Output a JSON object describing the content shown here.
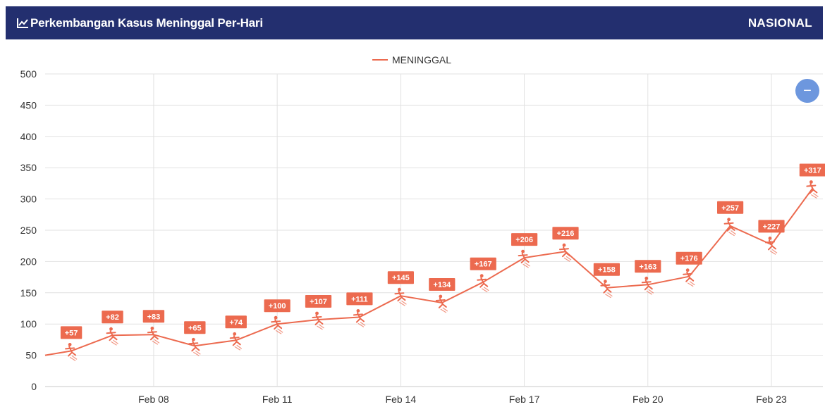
{
  "header": {
    "title": "Perkembangan Kasus Meninggal Per-Hari",
    "scope": "NASIONAL",
    "title_icon": "chart-line-icon"
  },
  "zoom_button": {
    "label": "−",
    "icon": "minus-icon"
  },
  "colors": {
    "header_bg": "#232f6f",
    "series": "#ec6a4f",
    "zoom_button": "#6d97de"
  },
  "chart_data": {
    "type": "line",
    "x": [
      "2021-02-06",
      "2021-02-07",
      "2021-02-08",
      "2021-02-09",
      "2021-02-10",
      "2021-02-11",
      "2021-02-12",
      "2021-02-13",
      "2021-02-14",
      "2021-02-15",
      "2021-02-16",
      "2021-02-17",
      "2021-02-18",
      "2021-02-19",
      "2021-02-20",
      "2021-02-21",
      "2021-02-22",
      "2021-02-23",
      "2021-02-24"
    ],
    "series": [
      {
        "name": "MENINGGAL",
        "values": [
          57,
          82,
          83,
          65,
          74,
          100,
          107,
          111,
          145,
          134,
          167,
          206,
          216,
          158,
          163,
          176,
          257,
          227,
          317
        ],
        "data_labels": [
          "+57",
          "+82",
          "+83",
          "+65",
          "+74",
          "+100",
          "+107",
          "+111",
          "+145",
          "+134",
          "+167",
          "+206",
          "+216",
          "+158",
          "+163",
          "+176",
          "+257",
          "+227",
          "+317"
        ]
      }
    ],
    "xticks": [
      {
        "date": "2021-02-08",
        "label": "Feb 08"
      },
      {
        "date": "2021-02-11",
        "label": "Feb 11"
      },
      {
        "date": "2021-02-14",
        "label": "Feb 14"
      },
      {
        "date": "2021-02-17",
        "label": "Feb 17"
      },
      {
        "date": "2021-02-20",
        "label": "Feb 20"
      },
      {
        "date": "2021-02-23",
        "label": "Feb 23"
      }
    ],
    "yticks": [
      0,
      50,
      100,
      150,
      200,
      250,
      300,
      350,
      400,
      450,
      500
    ],
    "ylim": [
      0,
      500
    ],
    "xlim": [
      "2021-02-05T08:45",
      "2021-02-24T06:00"
    ],
    "grid": true,
    "legend": "top-center",
    "marker_icon": "person-fallen-icon"
  }
}
